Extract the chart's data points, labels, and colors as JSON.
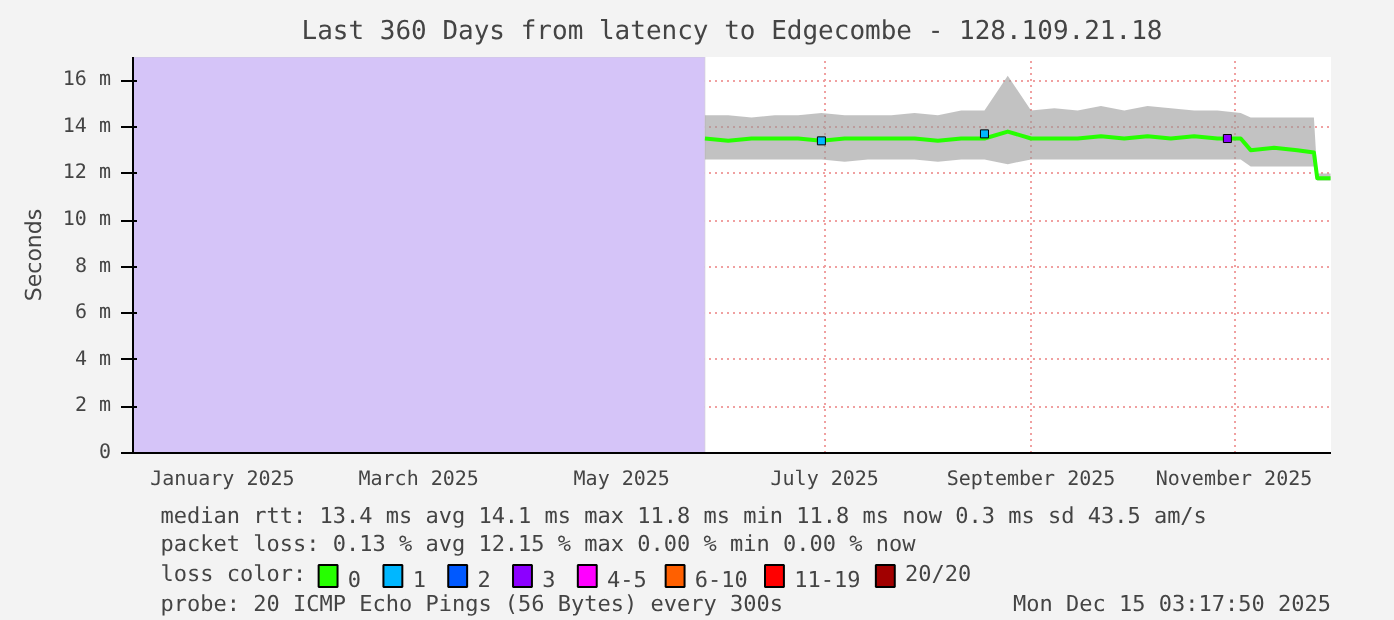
{
  "chart_data": {
    "type": "line",
    "title": "Last 360 Days from latency to Edgecombe - 128.109.21.18",
    "ylabel": "Seconds",
    "legend_title": "loss color:",
    "legend": "bottom",
    "grid": true,
    "xlim": [
      "2024-12-20T03:17",
      "2025-12-15T03:17"
    ],
    "xticks": [
      {
        "value": "2025-01-16",
        "label": "January 2025"
      },
      {
        "value": "2025-03-16",
        "label": "March 2025"
      },
      {
        "value": "2025-05-16",
        "label": "May 2025"
      },
      {
        "value": "2025-07-16",
        "label": "July 2025"
      },
      {
        "value": "2025-09-16",
        "label": "September 2025"
      },
      {
        "value": "2025-11-16",
        "label": "November 2025"
      }
    ],
    "ylim": [
      0,
      17
    ],
    "yticks": [
      0,
      {
        "value": 2,
        "label": "2 m"
      },
      {
        "value": 4,
        "label": "4 m"
      },
      {
        "value": 6,
        "label": "6 m"
      },
      {
        "value": 8,
        "label": "8 m"
      },
      {
        "value": 10,
        "label": "10 m"
      },
      {
        "value": 12,
        "label": "12 m"
      },
      {
        "value": 14,
        "label": "14 m"
      },
      {
        "value": 16,
        "label": "16 m"
      }
    ],
    "bands": [
      {
        "axis": "x",
        "from": "2024-12-20T03:17",
        "to": "2025-06-10",
        "color": "#d5c4f8"
      }
    ],
    "series": [
      {
        "name": "0",
        "color": "#26ff00",
        "x": [
          "2025-06-10",
          "2025-06-17",
          "2025-06-24",
          "2025-07-01",
          "2025-07-08",
          "2025-07-15",
          "2025-07-22",
          "2025-07-29",
          "2025-08-05",
          "2025-08-12",
          "2025-08-19",
          "2025-08-26",
          "2025-09-02",
          "2025-09-09",
          "2025-09-16",
          "2025-09-23",
          "2025-09-30",
          "2025-10-07",
          "2025-10-14",
          "2025-10-21",
          "2025-10-28",
          "2025-11-04",
          "2025-11-11",
          "2025-11-18",
          "2025-11-21",
          "2025-11-28",
          "2025-12-05",
          "2025-12-10",
          "2025-12-11",
          "2025-12-15"
        ],
        "values": [
          13.5,
          13.4,
          13.5,
          13.5,
          13.5,
          13.4,
          13.5,
          13.5,
          13.5,
          13.5,
          13.4,
          13.5,
          13.5,
          13.8,
          13.5,
          13.5,
          13.5,
          13.6,
          13.5,
          13.6,
          13.5,
          13.6,
          13.5,
          13.5,
          13.0,
          13.1,
          13.0,
          12.9,
          11.8,
          11.8
        ],
        "lower": [
          12.6,
          12.6,
          12.6,
          12.6,
          12.6,
          12.6,
          12.5,
          12.6,
          12.6,
          12.6,
          12.5,
          12.6,
          12.6,
          12.4,
          12.6,
          12.6,
          12.6,
          12.6,
          12.6,
          12.6,
          12.6,
          12.6,
          12.6,
          12.6,
          12.3,
          12.3,
          12.3,
          12.3,
          11.7,
          11.7
        ],
        "upper": [
          14.5,
          14.5,
          14.4,
          14.5,
          14.5,
          14.6,
          14.5,
          14.5,
          14.5,
          14.6,
          14.5,
          14.7,
          14.7,
          16.2,
          14.7,
          14.8,
          14.7,
          14.9,
          14.7,
          14.9,
          14.8,
          14.7,
          14.7,
          14.6,
          14.4,
          14.4,
          14.4,
          14.4,
          12.0,
          12.0
        ]
      },
      {
        "name": "1",
        "color": "#00b7ff",
        "type": "scatter",
        "x": [
          "2025-07-15",
          "2025-09-02"
        ],
        "values": [
          13.4,
          13.7
        ]
      },
      {
        "name": "2",
        "color": "#0059ff",
        "type": "scatter"
      },
      {
        "name": "3",
        "color": "#8c00ff",
        "type": "scatter",
        "x": [
          "2025-11-14"
        ],
        "values": [
          13.5
        ]
      },
      {
        "name": "4-5",
        "color": "#ff00ff",
        "type": "scatter"
      },
      {
        "name": "6-10",
        "color": "#ff6000",
        "type": "scatter"
      },
      {
        "name": "11-19",
        "color": "#ff0000",
        "type": "scatter"
      },
      {
        "name": "20/20",
        "color": "#a10000",
        "type": "scatter"
      }
    ],
    "annotations": [
      "median rtt:  13.4 ms avg  14.1 ms max  11.8 ms min  11.8 ms now  0.3 ms sd  43.5   am/s",
      "packet loss: 0.13 % avg  12.15 % max  0.00 % min  0.00 % now",
      "probe:       20 ICMP Echo Pings (56 Bytes) every 300s",
      "Mon Dec 15 03:17:50 2025"
    ]
  }
}
